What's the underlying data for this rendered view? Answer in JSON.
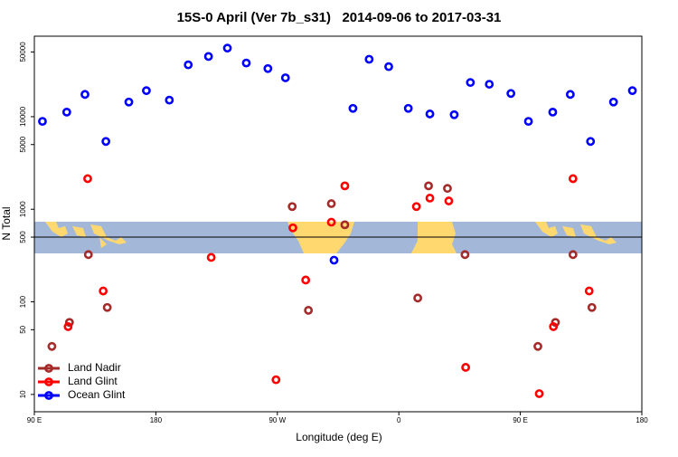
{
  "chart_data": {
    "type": "scatter",
    "title": "15S-0 April (Ver 7b_s31)   2014-09-06 to 2017-03-31",
    "x_label": "Longitude (deg E)",
    "y_label": "N Total",
    "xlim": [
      90,
      540
    ],
    "xticks": [
      {
        "value": 90,
        "label": "90 E"
      },
      180,
      {
        "value": 270,
        "label": "90 W"
      },
      {
        "value": 360,
        "label": "0"
      },
      {
        "value": 450,
        "label": "90 E"
      },
      {
        "value": 540,
        "label": "180"
      }
    ],
    "ylim": [
      6.5,
      74000
    ],
    "ylog": true,
    "yticks": [
      10,
      50,
      100,
      500,
      1000,
      5000,
      10000,
      50000
    ],
    "hline": 500,
    "legend": "bottom-left",
    "series": [
      {
        "name": "Land Nadir",
        "color": "#a52a2a",
        "x": [
          103,
          116,
          130,
          144,
          281,
          293,
          310,
          320,
          374,
          382,
          396,
          409,
          463,
          476,
          489,
          503
        ],
        "values": [
          33,
          60,
          324,
          87,
          1070,
          81,
          1150,
          680,
          110,
          1790,
          1680,
          324,
          33,
          60,
          324,
          87
        ]
      },
      {
        "name": "Land Glint",
        "color": "#ff0000",
        "x": [
          115,
          129.5,
          141,
          221,
          269,
          281.5,
          291,
          310,
          320,
          373,
          383,
          397,
          409.5,
          464,
          474.5,
          489,
          501
        ],
        "values": [
          54,
          2140,
          131,
          302,
          14.4,
          630,
          172,
          725,
          1790,
          1070,
          1320,
          1230,
          19.6,
          10.2,
          54,
          2140,
          131
        ]
      },
      {
        "name": "Ocean Glint",
        "color": "#0000ff",
        "x": [
          96,
          114,
          127.5,
          143,
          160,
          173,
          190,
          204,
          219,
          233,
          247,
          263,
          276,
          312,
          326,
          338,
          352.5,
          367,
          383,
          401,
          413,
          427,
          443,
          456,
          474,
          487,
          502,
          519,
          533
        ],
        "values": [
          8900,
          11200,
          17400,
          5400,
          14400,
          19100,
          15100,
          36300,
          44700,
          55000,
          38000,
          33100,
          26300,
          282,
          12300,
          41700,
          34700,
          12300,
          10700,
          10500,
          23400,
          22400,
          17800,
          8900,
          11200,
          17400,
          5400,
          14400,
          19100
        ]
      }
    ]
  }
}
